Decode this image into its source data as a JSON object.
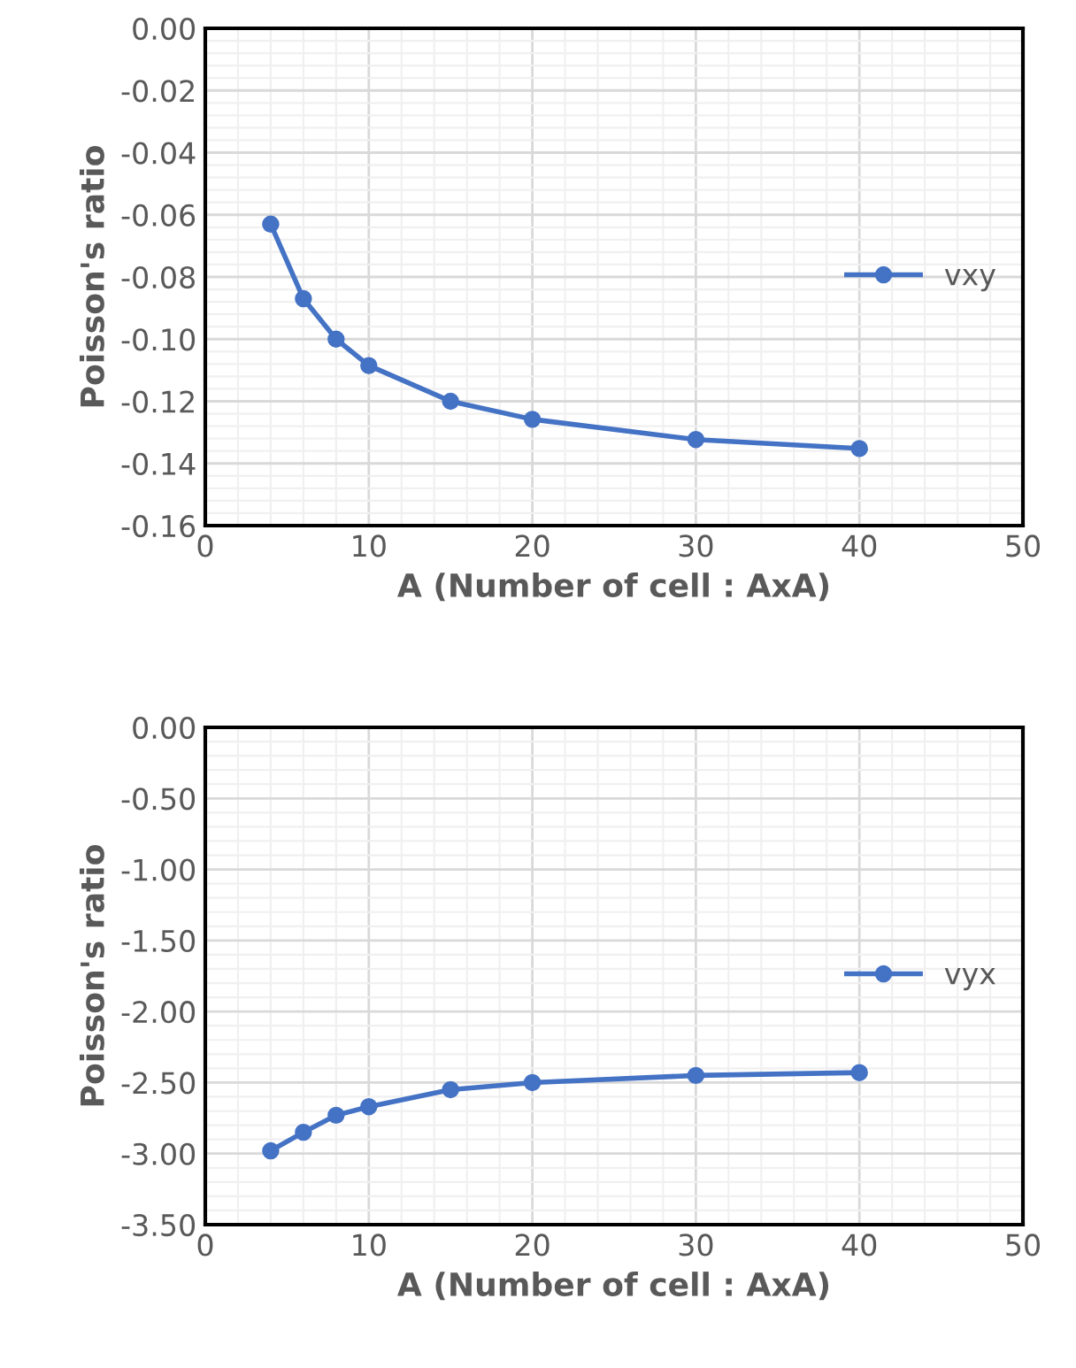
{
  "chart_data": [
    {
      "type": "line",
      "xlabel": "A (Number of cell : AxA)",
      "ylabel": "Poisson's ratio",
      "x": [
        4,
        6,
        8,
        10,
        15,
        20,
        30,
        40
      ],
      "series": [
        {
          "name": "vxy",
          "color": "#4472c4",
          "values": [
            -0.063,
            -0.087,
            -0.1,
            -0.1085,
            -0.12,
            -0.1258,
            -0.1323,
            -0.1352
          ]
        }
      ],
      "xlim": [
        0,
        50
      ],
      "xticks": [
        0,
        10,
        20,
        30,
        40,
        50
      ],
      "ylim": [
        -0.16,
        0
      ],
      "yticks": [
        {
          "value": -0.16,
          "label": "-0.16"
        },
        {
          "value": -0.14,
          "label": "-0.14"
        },
        {
          "value": -0.12,
          "label": "-0.12"
        },
        {
          "value": -0.1,
          "label": "-0.10"
        },
        {
          "value": -0.08,
          "label": "-0.08"
        },
        {
          "value": -0.06,
          "label": "-0.06"
        },
        {
          "value": -0.04,
          "label": "-0.04"
        },
        {
          "value": -0.02,
          "label": "-0.02"
        },
        {
          "value": 0,
          "label": "0.00"
        }
      ],
      "grid": true,
      "legend": "right",
      "marker": "circle",
      "line_style": "solid"
    },
    {
      "type": "line",
      "xlabel": "A (Number of cell : AxA)",
      "ylabel": "Poisson's ratio",
      "x": [
        4,
        6,
        8,
        10,
        15,
        20,
        30,
        40
      ],
      "series": [
        {
          "name": "vyx",
          "color": "#4472c4",
          "values": [
            -2.98,
            -2.85,
            -2.73,
            -2.67,
            -2.55,
            -2.5,
            -2.45,
            -2.43
          ]
        }
      ],
      "xlim": [
        0,
        50
      ],
      "xticks": [
        0,
        10,
        20,
        30,
        40,
        50
      ],
      "ylim": [
        -3.5,
        0
      ],
      "yticks": [
        {
          "value": -3.5,
          "label": "-3.50"
        },
        {
          "value": -3,
          "label": "-3.00"
        },
        {
          "value": -2.5,
          "label": "-2.50"
        },
        {
          "value": -2,
          "label": "-2.00"
        },
        {
          "value": -1.5,
          "label": "-1.50"
        },
        {
          "value": -1,
          "label": "-1.00"
        },
        {
          "value": -0.5,
          "label": "-0.50"
        },
        {
          "value": 0,
          "label": "0.00"
        }
      ],
      "grid": true,
      "legend": "right",
      "marker": "circle",
      "line_style": "solid"
    }
  ]
}
